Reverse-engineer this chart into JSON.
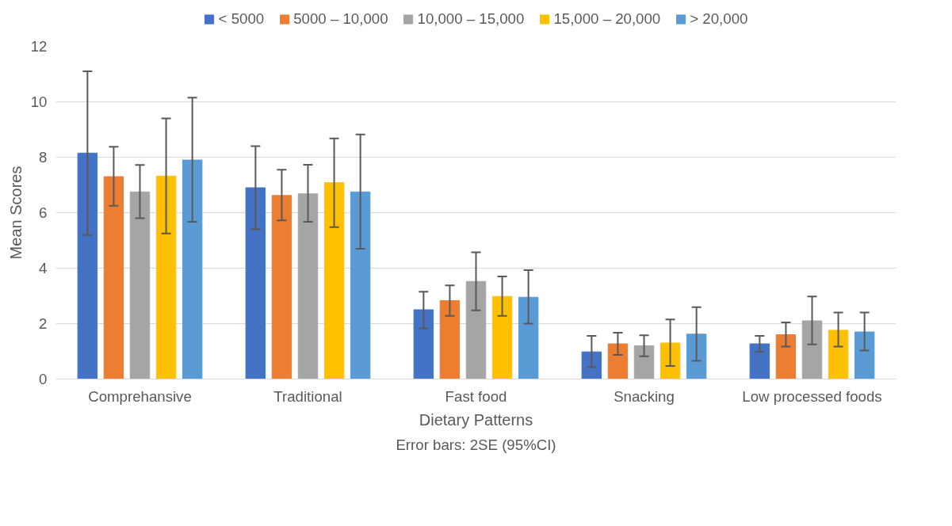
{
  "chart_data": {
    "type": "bar",
    "xlabel": "Dietary Patterns",
    "ylabel": "Mean Scores",
    "annotations": [
      "Error bars: 2SE (95%CI)"
    ],
    "categories": [
      "Comprehansive",
      "Traditional",
      "Fast food",
      "Snacking",
      "Low processed foods"
    ],
    "series": [
      {
        "name": "< 5000",
        "color": "#4472c4",
        "values": [
          8.15,
          6.9,
          2.5,
          0.98,
          1.27
        ],
        "errors": [
          [
            5.2,
            11.1
          ],
          [
            5.4,
            8.4
          ],
          [
            1.83,
            3.15
          ],
          [
            0.43,
            1.56
          ],
          [
            0.98,
            1.56
          ]
        ]
      },
      {
        "name": "5000 – 10,000",
        "color": "#ed7d31",
        "values": [
          7.3,
          6.62,
          2.83,
          1.27,
          1.6
        ],
        "errors": [
          [
            6.25,
            8.38
          ],
          [
            5.72,
            7.55
          ],
          [
            2.28,
            3.38
          ],
          [
            0.87,
            1.67
          ],
          [
            1.17,
            2.04
          ]
        ]
      },
      {
        "name": "10,000 – 15,000",
        "color": "#a5a5a5",
        "values": [
          6.75,
          6.68,
          3.52,
          1.2,
          2.1
        ],
        "errors": [
          [
            5.8,
            7.72
          ],
          [
            5.67,
            7.73
          ],
          [
            2.48,
            4.57
          ],
          [
            0.82,
            1.58
          ],
          [
            1.25,
            2.98
          ]
        ]
      },
      {
        "name": "15,000 – 20,000",
        "color": "#ffc000",
        "values": [
          7.32,
          7.08,
          2.98,
          1.3,
          1.76
        ],
        "errors": [
          [
            5.25,
            9.4
          ],
          [
            5.48,
            8.68
          ],
          [
            2.28,
            3.7
          ],
          [
            0.47,
            2.15
          ],
          [
            1.17,
            2.4
          ]
        ]
      },
      {
        "name": "> 20,000",
        "color": "#5b9bd5",
        "values": [
          7.9,
          6.75,
          2.95,
          1.62,
          1.7
        ],
        "errors": [
          [
            5.67,
            10.15
          ],
          [
            4.7,
            8.82
          ],
          [
            2.0,
            3.93
          ],
          [
            0.66,
            2.59
          ],
          [
            1.03,
            2.4
          ]
        ]
      }
    ],
    "ylim": [
      0,
      12
    ],
    "yticks": [
      0,
      2,
      4,
      6,
      8,
      10,
      12
    ],
    "grid": "y",
    "legend": "top"
  }
}
